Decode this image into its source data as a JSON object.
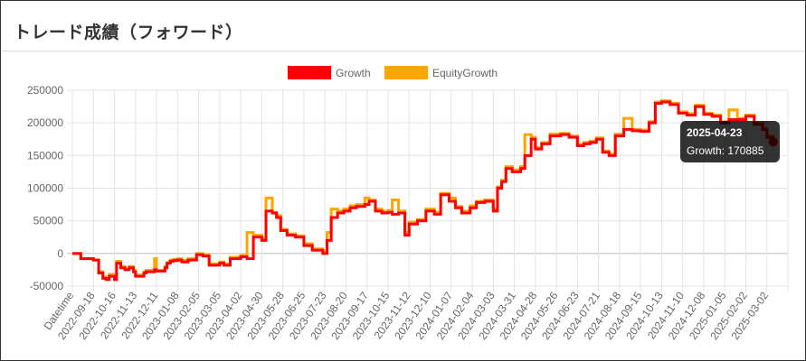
{
  "panel": {
    "title": "トレード成績（フォワード）"
  },
  "chart_data": {
    "type": "line",
    "title": "",
    "xlabel": "",
    "ylabel": "",
    "ylim": [
      -50000,
      250000
    ],
    "yticks": [
      250000,
      200000,
      150000,
      100000,
      50000,
      0,
      -50000
    ],
    "x_tick_labels": [
      "Datetime",
      "2022-09-18",
      "2022-10-16",
      "2022-11-13",
      "2022-12-11",
      "2023-01-08",
      "2023-02-05",
      "2023-03-05",
      "2023-04-02",
      "2023-04-30",
      "2023-05-28",
      "2023-06-25",
      "2023-07-23",
      "2023-08-20",
      "2023-09-17",
      "2023-10-15",
      "2023-11-12",
      "2023-12-10",
      "2024-01-07",
      "2024-02-04",
      "2024-03-03",
      "2024-03-31",
      "2024-04-28",
      "2024-05-26",
      "2024-06-23",
      "2024-07-21",
      "2024-08-18",
      "2024-09-15",
      "2024-10-13",
      "2024-11-10",
      "2024-12-08",
      "2025-01-05",
      "2025-02-02",
      "2025-03-02"
    ],
    "legend": {
      "position": "top"
    },
    "grid": true,
    "series": [
      {
        "name": "Growth",
        "color": "#ff0000",
        "x": [
          0,
          0.4,
          1,
          1.25,
          1.45,
          1.6,
          1.75,
          2.0,
          2.1,
          2.3,
          2.5,
          2.7,
          2.9,
          3.0,
          3.4,
          3.5,
          3.9,
          4.0,
          4.4,
          4.5,
          4.65,
          4.8,
          5.0,
          5.2,
          5.5,
          5.9,
          6.2,
          6.5,
          7.0,
          7.2,
          7.5,
          8.0,
          8.3,
          8.6,
          9.0,
          9.2,
          9.5,
          9.7,
          9.9,
          10.2,
          10.6,
          11.0,
          11.4,
          11.9,
          12.1,
          12.3,
          12.6,
          12.9,
          13.2,
          13.5,
          13.9,
          14.1,
          14.4,
          14.7,
          15.0,
          15.2,
          15.5,
          15.8,
          16.0,
          16.4,
          16.8,
          17.2,
          17.5,
          17.9,
          18.2,
          18.5,
          18.9,
          19.2,
          19.6,
          20.0,
          20.2,
          20.4,
          20.6,
          20.9,
          21.3,
          21.5,
          21.8,
          22.0,
          22.3,
          22.7,
          23.2,
          23.6,
          24.0,
          24.3,
          24.6,
          24.9,
          25.2,
          25.5,
          25.8,
          26.2,
          26.6,
          27.0,
          27.4,
          27.7,
          28.0,
          28.4,
          28.8,
          29.2,
          29.6,
          30.0,
          30.4,
          30.8,
          31.2,
          31.6,
          32.0,
          32.4,
          32.8,
          33.0,
          33.3
        ],
        "values": [
          0,
          -8000,
          -10000,
          -30000,
          -38000,
          -40000,
          -35000,
          -40000,
          -15000,
          -22000,
          -25000,
          -22000,
          -28000,
          -35000,
          -30000,
          -28000,
          -25000,
          -27000,
          -22000,
          -15000,
          -12000,
          -11000,
          -10000,
          -13000,
          -10000,
          -2000,
          -4000,
          -18000,
          -15000,
          -18000,
          -8000,
          -5000,
          -8000,
          25000,
          20000,
          65000,
          62000,
          55000,
          35000,
          28000,
          25000,
          12000,
          5000,
          0,
          20000,
          55000,
          62000,
          65000,
          70000,
          72000,
          75000,
          80000,
          65000,
          62000,
          63000,
          60000,
          62000,
          28000,
          45000,
          50000,
          65000,
          60000,
          90000,
          80000,
          70000,
          62000,
          70000,
          78000,
          80000,
          65000,
          100000,
          110000,
          130000,
          125000,
          130000,
          150000,
          175000,
          160000,
          168000,
          180000,
          182000,
          178000,
          165000,
          168000,
          170000,
          175000,
          155000,
          150000,
          180000,
          190000,
          188000,
          187000,
          200000,
          230000,
          232000,
          228000,
          215000,
          212000,
          225000,
          213000,
          210000,
          200000,
          205000,
          205000,
          210000,
          198000,
          190000,
          178000,
          170885
        ]
      },
      {
        "name": "EquityGrowth",
        "color": "#ffa500",
        "x": [
          0,
          0.4,
          1,
          1.25,
          1.45,
          1.6,
          1.75,
          2.0,
          2.1,
          2.3,
          2.5,
          2.7,
          2.9,
          3.0,
          3.4,
          3.5,
          3.9,
          4.0,
          4.4,
          4.5,
          4.65,
          4.8,
          5.0,
          5.2,
          5.5,
          5.9,
          6.2,
          6.5,
          7.0,
          7.2,
          7.5,
          8.0,
          8.3,
          8.6,
          9.0,
          9.2,
          9.5,
          9.7,
          9.9,
          10.2,
          10.6,
          11.0,
          11.4,
          11.9,
          12.1,
          12.3,
          12.6,
          12.9,
          13.2,
          13.5,
          13.9,
          14.1,
          14.4,
          14.7,
          15.0,
          15.2,
          15.5,
          15.8,
          16.0,
          16.4,
          16.8,
          17.2,
          17.5,
          17.9,
          18.2,
          18.5,
          18.9,
          19.2,
          19.6,
          20.0,
          20.2,
          20.4,
          20.6,
          20.9,
          21.3,
          21.5,
          21.8,
          22.0,
          22.3,
          22.7,
          23.2,
          23.6,
          24.0,
          24.3,
          24.6,
          24.9,
          25.2,
          25.5,
          25.8,
          26.2,
          26.6,
          27.0,
          27.4,
          27.7,
          28.0,
          28.4,
          28.8,
          29.2,
          29.6,
          30.0,
          30.4,
          30.8,
          31.2,
          31.6,
          32.0,
          32.4,
          32.8,
          33.0,
          33.3
        ],
        "values": [
          0,
          -8000,
          -10000,
          -28000,
          -36000,
          -38000,
          -32000,
          -38000,
          -12000,
          -20000,
          -24000,
          -20000,
          -26000,
          -33000,
          -28000,
          -26000,
          -8000,
          -26000,
          -20000,
          -14000,
          -10000,
          -9000,
          -8000,
          -11000,
          -8000,
          0,
          -2000,
          -16000,
          -13000,
          -16000,
          -6000,
          -3000,
          32000,
          28000,
          22000,
          85000,
          63000,
          58000,
          37000,
          30000,
          27000,
          15000,
          7000,
          3000,
          32000,
          68000,
          65000,
          68000,
          73000,
          75000,
          85000,
          82000,
          68000,
          65000,
          66000,
          82000,
          65000,
          32000,
          48000,
          52000,
          68000,
          63000,
          92000,
          85000,
          72000,
          65000,
          73000,
          80000,
          82000,
          68000,
          102000,
          112000,
          133000,
          128000,
          133000,
          182000,
          178000,
          162000,
          170000,
          183000,
          184000,
          180000,
          167000,
          170000,
          172000,
          177000,
          157000,
          152000,
          183000,
          207000,
          190000,
          189000,
          202000,
          232000,
          234000,
          230000,
          217000,
          214000,
          227000,
          215000,
          212000,
          202000,
          220000,
          207000,
          212000,
          200000,
          192000,
          180000,
          172000
        ]
      }
    ],
    "tooltip": {
      "date": "2025-04-23",
      "text": "Growth: 170885"
    }
  }
}
